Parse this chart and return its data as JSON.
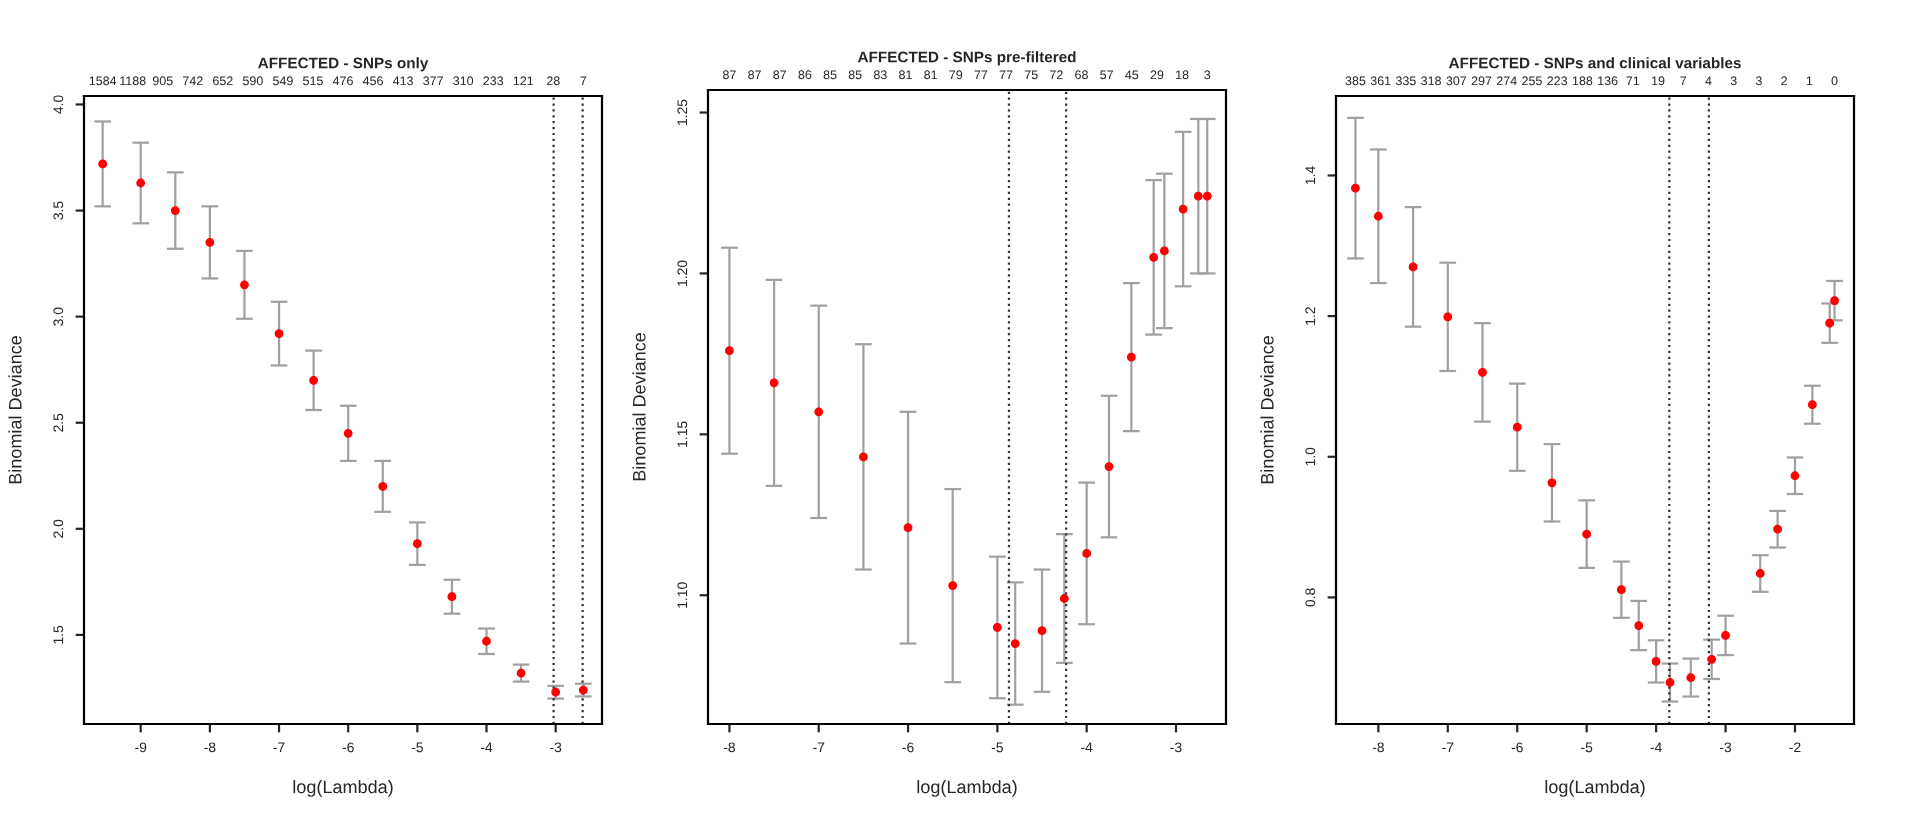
{
  "chart_data": [
    {
      "type": "scatter",
      "title": "AFFECTED - SNPs only",
      "xlabel": "log(Lambda)",
      "ylabel": "Binomial Deviance",
      "marker": "circle",
      "grid": false,
      "xlim": [
        -9.82,
        -2.33
      ],
      "ylim": [
        1.08,
        4.04
      ],
      "xticks": [
        -9,
        -8,
        -7,
        -6,
        -5,
        -4,
        -3
      ],
      "yticks": [
        {
          "value": 1.5,
          "label": "1.5"
        },
        {
          "value": 2,
          "label": "2.0"
        },
        {
          "value": 2.5,
          "label": "2.5"
        },
        {
          "value": 3,
          "label": "3.0"
        },
        {
          "value": 3.5,
          "label": "3.5"
        },
        {
          "value": 4,
          "label": "4.0"
        }
      ],
      "annotations": [
        "1584",
        "1188",
        "905",
        "742",
        "652",
        "590",
        "549",
        "515",
        "476",
        "456",
        "413",
        "377",
        "310",
        "233",
        "121",
        "28",
        "7"
      ],
      "ref_lines": [
        {
          "axis": "x",
          "value": -3.03,
          "line_style": "dotted"
        },
        {
          "axis": "x",
          "value": -2.61,
          "line_style": "dotted"
        }
      ],
      "series": [
        {
          "color": "#ff0000",
          "x": [
            -9.55,
            -9,
            -8.5,
            -8,
            -7.5,
            -7,
            -6.5,
            -6,
            -5.5,
            -5,
            -4.5,
            -4,
            -3.5,
            -3,
            -2.6
          ],
          "values": [
            3.72,
            3.63,
            3.5,
            3.35,
            3.15,
            2.92,
            2.7,
            2.45,
            2.2,
            1.93,
            1.68,
            1.47,
            1.32,
            1.23,
            1.24
          ],
          "errors": [
            0.2,
            0.19,
            0.18,
            0.17,
            0.16,
            0.15,
            0.14,
            0.13,
            0.12,
            0.1,
            0.08,
            0.06,
            0.04,
            0.03,
            0.03
          ]
        }
      ]
    },
    {
      "type": "scatter",
      "title": "AFFECTED - SNPs pre-filtered",
      "xlabel": "log(Lambda)",
      "ylabel": "Binomial Deviance",
      "marker": "circle",
      "grid": false,
      "xlim": [
        -8.24,
        -2.44
      ],
      "ylim": [
        1.06,
        1.257
      ],
      "xticks": [
        -8,
        -7,
        -6,
        -5,
        -4,
        -3
      ],
      "yticks": [
        {
          "value": 1.1,
          "label": "1.10"
        },
        {
          "value": 1.15,
          "label": "1.15"
        },
        {
          "value": 1.2,
          "label": "1.20"
        },
        {
          "value": 1.25,
          "label": "1.25"
        }
      ],
      "annotations": [
        "87",
        "87",
        "87",
        "86",
        "85",
        "85",
        "83",
        "81",
        "81",
        "79",
        "77",
        "77",
        "75",
        "72",
        "68",
        "57",
        "45",
        "29",
        "18",
        "3"
      ],
      "ref_lines": [
        {
          "axis": "x",
          "value": -4.87,
          "line_style": "dotted"
        },
        {
          "axis": "x",
          "value": -4.23,
          "line_style": "dotted"
        }
      ],
      "series": [
        {
          "color": "#ff0000",
          "x": [
            -8,
            -7.5,
            -7,
            -6.5,
            -6,
            -5.5,
            -5,
            -4.8,
            -4.5,
            -4.25,
            -4,
            -3.75,
            -3.5,
            -3.25,
            -3.13,
            -2.92,
            -2.75,
            -2.65
          ],
          "values": [
            1.176,
            1.166,
            1.157,
            1.143,
            1.121,
            1.103,
            1.09,
            1.085,
            1.089,
            1.099,
            1.113,
            1.14,
            1.174,
            1.205,
            1.207,
            1.22,
            1.224,
            1.224
          ],
          "errors": [
            0.032,
            0.032,
            0.033,
            0.035,
            0.036,
            0.03,
            0.022,
            0.019,
            0.019,
            0.02,
            0.022,
            0.022,
            0.023,
            0.024,
            0.024,
            0.024,
            0.024,
            0.024
          ]
        }
      ]
    },
    {
      "type": "scatter",
      "title": "AFFECTED - SNPs and clinical variables",
      "xlabel": "log(Lambda)",
      "ylabel": "Binomial Deviance",
      "marker": "circle",
      "grid": false,
      "xlim": [
        -8.61,
        -1.15
      ],
      "ylim": [
        0.62,
        1.513
      ],
      "xticks": [
        -8,
        -7,
        -6,
        -5,
        -4,
        -3,
        -2
      ],
      "yticks": [
        {
          "value": 0.8,
          "label": "0.8"
        },
        {
          "value": 1,
          "label": "1.0"
        },
        {
          "value": 1.2,
          "label": "1.2"
        },
        {
          "value": 1.4,
          "label": "1.4"
        }
      ],
      "annotations": [
        "385",
        "361",
        "335",
        "318",
        "307",
        "297",
        "274",
        "255",
        "223",
        "188",
        "136",
        "71",
        "19",
        "7",
        "4",
        "3",
        "3",
        "2",
        "1",
        "0"
      ],
      "ref_lines": [
        {
          "axis": "x",
          "value": -3.81,
          "line_style": "dotted"
        },
        {
          "axis": "x",
          "value": -3.24,
          "line_style": "dotted"
        }
      ],
      "series": [
        {
          "color": "#ff0000",
          "x": [
            -8.33,
            -8,
            -7.5,
            -7,
            -6.5,
            -6,
            -5.5,
            -5,
            -4.5,
            -4.25,
            -4,
            -3.8,
            -3.5,
            -3.2,
            -3,
            -2.5,
            -2.25,
            -2,
            -1.75,
            -1.5,
            -1.43
          ],
          "values": [
            1.382,
            1.342,
            1.27,
            1.199,
            1.12,
            1.042,
            0.963,
            0.89,
            0.811,
            0.76,
            0.709,
            0.679,
            0.686,
            0.712,
            0.746,
            0.834,
            0.897,
            0.973,
            1.074,
            1.19,
            1.222
          ],
          "errors": [
            0.1,
            0.095,
            0.085,
            0.077,
            0.07,
            0.062,
            0.055,
            0.048,
            0.04,
            0.035,
            0.03,
            0.027,
            0.027,
            0.028,
            0.028,
            0.026,
            0.026,
            0.026,
            0.027,
            0.028,
            0.028
          ]
        }
      ]
    }
  ]
}
